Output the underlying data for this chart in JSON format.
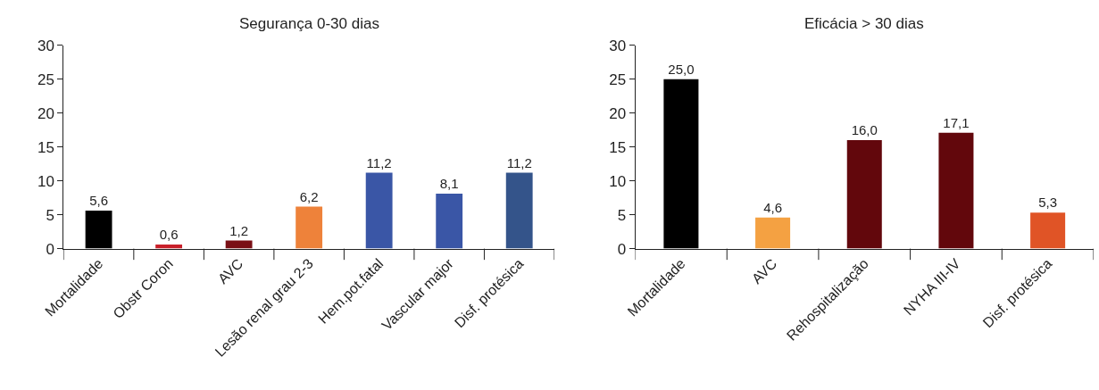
{
  "chart_data": [
    {
      "type": "bar",
      "title": "Segurança 0-30 dias",
      "categories": [
        "Mortalidade",
        "Obstr Coron",
        "AVC",
        "Lesão renal grau 2-3",
        "Hem.pot.fatal",
        "Vascular major",
        "Disf. protésica"
      ],
      "values": [
        5.6,
        0.6,
        1.2,
        6.2,
        11.2,
        8.1,
        11.2
      ],
      "value_labels": [
        "5,6",
        "0,6",
        "1,2",
        "6,2",
        "11,2",
        "8,1",
        "11,2"
      ],
      "colors": [
        "#000000",
        "#c8202a",
        "#7a1016",
        "#ee823a",
        "#3a56a6",
        "#3a56a6",
        "#34548a"
      ],
      "ylim": [
        0,
        30
      ],
      "yticks": [
        0,
        5,
        10,
        15,
        20,
        25,
        30
      ]
    },
    {
      "type": "bar",
      "title": "Eficácia > 30 dias",
      "categories": [
        "Mortalidade",
        "AVC",
        "Rehospitalização",
        "NYHA III-IV",
        "Disf. protésica"
      ],
      "values": [
        25.0,
        4.6,
        16.0,
        17.1,
        5.3
      ],
      "value_labels": [
        "25,0",
        "4,6",
        "16,0",
        "17,1",
        "5,3"
      ],
      "colors": [
        "#000000",
        "#f4a142",
        "#62070c",
        "#62070c",
        "#e05426"
      ],
      "ylim": [
        0,
        30
      ],
      "yticks": [
        0,
        5,
        10,
        15,
        20,
        25,
        30
      ]
    }
  ]
}
